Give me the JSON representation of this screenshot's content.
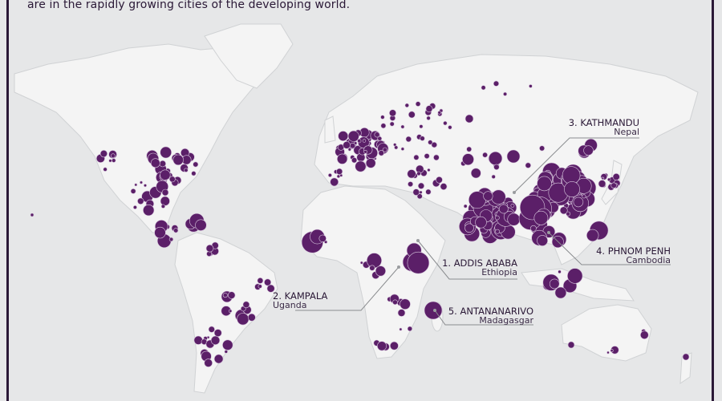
{
  "intro_text": "are in the rapidly growing cities of the developing world.",
  "colors": {
    "background": "#e6e7e8",
    "land": "#f4f4f4",
    "border": "#cfd1d3",
    "bubble": "#5b1f68",
    "frame": "#2a1836",
    "leader": "#8a8c8f"
  },
  "labels": [
    {
      "rank_city": "1. ADDIS ABABA",
      "country": "Ethiopia"
    },
    {
      "rank_city": "2. KAMPALA",
      "country": "Uganda"
    },
    {
      "rank_city": "3. KATHMANDU",
      "country": "Nepal"
    },
    {
      "rank_city": "4. PHNOM PENH",
      "country": "Cambodia"
    },
    {
      "rank_city": "5. ANTANANARIVO",
      "country": "Madagasgar"
    }
  ]
}
